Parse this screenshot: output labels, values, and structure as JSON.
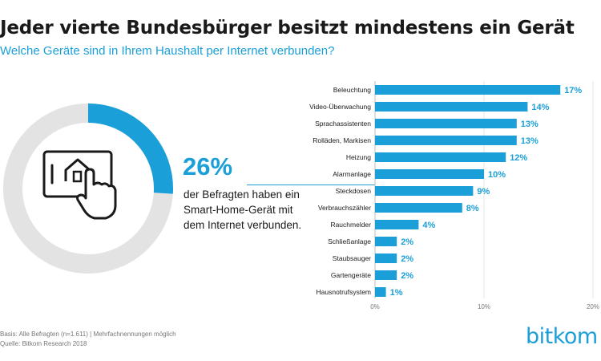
{
  "header": {
    "title": "Jeder vierte Bundesbürger besitzt mindestens ein Gerät",
    "subtitle": "Welche Geräte sind in Ihrem Haushalt per Internet verbunden?"
  },
  "callout": {
    "percent": "26%",
    "value": 26,
    "description": "der Befragten haben ein Smart-Home-Gerät mit dem Internet verbunden.",
    "icon": "smart-home-tablet-icon"
  },
  "footer": {
    "line1": "Basis: Alle Befragten (n=1.611) | Mehrfachnennungen möglich",
    "line2": "Quelle: Bitkom Research 2018"
  },
  "logo": "bitkom",
  "colors": {
    "accent": "#1a9fd8",
    "donut_track": "#e3e3e3",
    "text": "#1a1a1a"
  },
  "chart_data": {
    "type": "bar",
    "orientation": "horizontal",
    "categories": [
      "Beleuchtung",
      "Video-Überwachung",
      "Sprachassistenten",
      "Rolläden, Markisen",
      "Heizung",
      "Alarmanlage",
      "Steckdosen",
      "Verbrauchszähler",
      "Rauchmelder",
      "Schließanlage",
      "Staubsauger",
      "Gartengeräte",
      "Hausnotrufsystem"
    ],
    "values": [
      17,
      14,
      13,
      13,
      12,
      10,
      9,
      8,
      4,
      2,
      2,
      2,
      1
    ],
    "data_labels": [
      "17%",
      "14%",
      "13%",
      "13%",
      "12%",
      "10%",
      "9%",
      "8%",
      "4%",
      "2%",
      "2%",
      "2%",
      "1%"
    ],
    "xlim": [
      0,
      20
    ],
    "x_ticks": [
      "0%",
      "10%",
      "20%"
    ],
    "grid": true,
    "legend": "none"
  }
}
